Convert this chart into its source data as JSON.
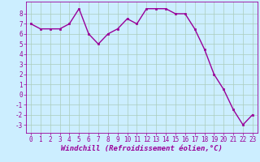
{
  "x": [
    0,
    1,
    2,
    3,
    4,
    5,
    6,
    7,
    8,
    9,
    10,
    11,
    12,
    13,
    14,
    15,
    16,
    17,
    18,
    19,
    20,
    21,
    22,
    23
  ],
  "y": [
    7.0,
    6.5,
    6.5,
    6.5,
    7.0,
    8.5,
    6.0,
    5.0,
    6.0,
    6.5,
    7.5,
    7.0,
    8.5,
    8.5,
    8.5,
    8.0,
    8.0,
    6.5,
    4.5,
    2.0,
    0.5,
    -1.5,
    -3.0,
    -2.0
  ],
  "line_color": "#990099",
  "marker": "s",
  "marker_size": 2,
  "bg_color": "#cceeff",
  "grid_color": "#aaccbb",
  "xlabel": "Windchill (Refroidissement éolien,°C)",
  "ylim": [
    -3.8,
    9.2
  ],
  "xlim": [
    -0.5,
    23.5
  ],
  "yticks": [
    -3,
    -2,
    -1,
    0,
    1,
    2,
    3,
    4,
    5,
    6,
    7,
    8
  ],
  "xticks": [
    0,
    1,
    2,
    3,
    4,
    5,
    6,
    7,
    8,
    9,
    10,
    11,
    12,
    13,
    14,
    15,
    16,
    17,
    18,
    19,
    20,
    21,
    22,
    23
  ],
  "xlabel_fontsize": 6.5,
  "tick_fontsize": 5.5,
  "line_width": 1.0
}
